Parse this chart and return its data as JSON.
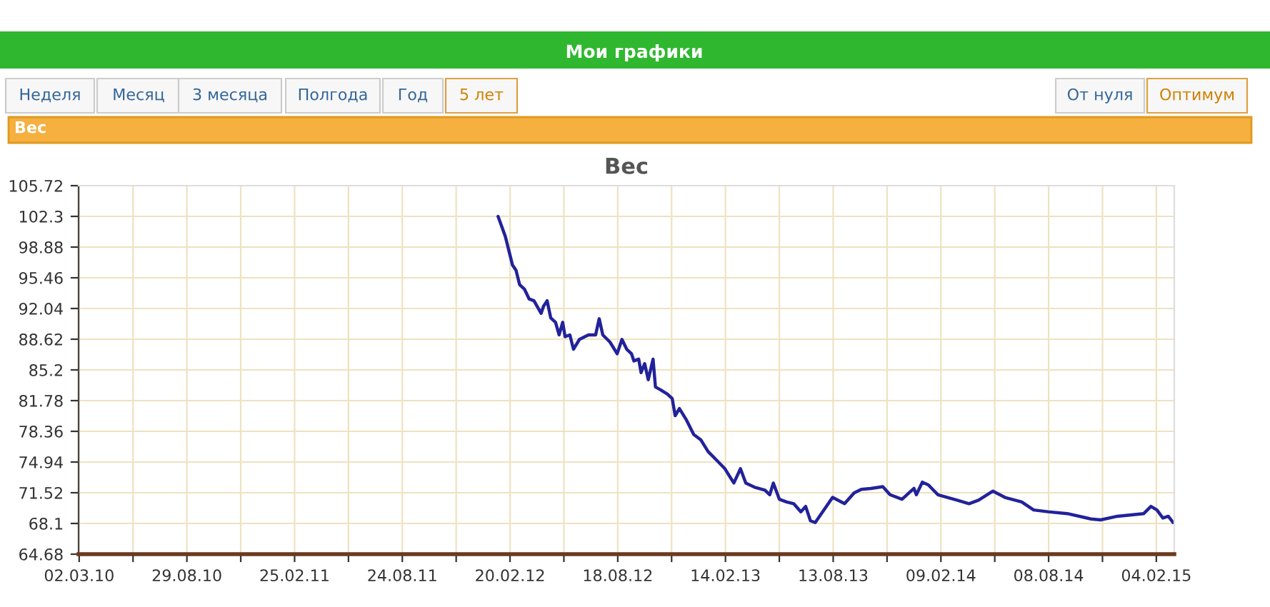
{
  "chart_data": {
    "type": "line",
    "title": "Вес",
    "annotations": [
      "Мои графики",
      "Неделя",
      "Месяц",
      "3 месяца",
      "Полгода",
      "Год",
      "5 лет",
      "От нуля",
      "Оптимум",
      "Вес"
    ],
    "x": [
      "2012-01-31",
      "2012-02-12",
      "2012-02-24",
      "2012-03-01",
      "2012-03-07",
      "2012-03-15",
      "2012-03-23",
      "2012-03-31",
      "2012-04-12",
      "2012-04-16",
      "2012-04-22",
      "2012-04-28",
      "2012-05-06",
      "2012-05-12",
      "2012-05-18",
      "2012-05-22",
      "2012-05-30",
      "2012-06-05",
      "2012-06-15",
      "2012-06-30",
      "2012-07-12",
      "2012-07-18",
      "2012-07-24",
      "2012-08-05",
      "2012-08-17",
      "2012-08-25",
      "2012-09-02",
      "2012-09-10",
      "2012-09-14",
      "2012-09-22",
      "2012-09-26",
      "2012-10-02",
      "2012-10-08",
      "2012-10-16",
      "2012-10-20",
      "2012-10-28",
      "2012-11-09",
      "2012-11-17",
      "2012-11-22",
      "2012-11-29",
      "2012-12-11",
      "2012-12-23",
      "2013-01-04",
      "2013-01-16",
      "2013-01-28",
      "2013-02-13",
      "2013-02-28",
      "2013-03-11",
      "2013-03-20",
      "2013-04-05",
      "2013-04-21",
      "2013-04-29",
      "2013-05-05",
      "2013-05-15",
      "2013-05-27",
      "2013-06-08",
      "2013-06-20",
      "2013-06-28",
      "2013-07-06",
      "2013-07-14",
      "2013-08-12",
      "2013-09-01",
      "2013-09-17",
      "2013-09-29",
      "2013-10-15",
      "2013-11-04",
      "2013-11-16",
      "2013-12-06",
      "2013-12-26",
      "2013-12-30",
      "2014-01-09",
      "2014-01-19",
      "2014-02-04",
      "2014-03-08",
      "2014-03-28",
      "2014-04-13",
      "2014-05-07",
      "2014-05-27",
      "2014-06-24",
      "2014-07-14",
      "2014-08-07",
      "2014-09-08",
      "2014-10-18",
      "2014-11-03",
      "2014-12-01",
      "2015-01-14",
      "2015-01-26",
      "2015-02-05",
      "2015-02-15",
      "2015-02-24",
      "2015-03-04"
    ],
    "series": [
      {
        "color": "#22229a",
        "values": [
          102.3,
          100.1,
          96.9,
          96.3,
          94.7,
          94.2,
          93.1,
          92.9,
          91.5,
          92.3,
          92.9,
          91.0,
          90.5,
          89.1,
          90.5,
          88.9,
          89.1,
          87.5,
          88.6,
          89.1,
          89.1,
          90.9,
          89.1,
          88.3,
          87.0,
          88.6,
          87.5,
          87.0,
          86.2,
          86.4,
          84.9,
          85.9,
          84.1,
          86.4,
          83.3,
          83.0,
          82.5,
          82.0,
          80.1,
          80.9,
          79.6,
          78.0,
          77.4,
          76.1,
          75.3,
          74.2,
          72.6,
          74.2,
          72.6,
          72.1,
          71.8,
          71.3,
          72.6,
          70.8,
          70.5,
          70.3,
          69.4,
          70.0,
          68.4,
          68.2,
          71.0,
          70.3,
          71.5,
          71.9,
          72.0,
          72.2,
          71.3,
          70.8,
          72.0,
          71.3,
          72.7,
          72.4,
          71.3,
          70.7,
          70.3,
          70.7,
          71.7,
          71.0,
          70.5,
          69.6,
          69.4,
          69.2,
          68.6,
          68.5,
          68.9,
          69.2,
          70.0,
          69.6,
          68.7,
          68.9,
          68.2
        ]
      }
    ],
    "xlim": [
      "2010-03-01",
      "2015-03-06"
    ],
    "xticks": [
      {
        "value": "2010-03-02",
        "label": "02.03.10"
      },
      {
        "value": "2010-05-31",
        "label": null
      },
      {
        "value": "2010-08-29",
        "label": "29.08.10"
      },
      {
        "value": "2010-11-27",
        "label": null
      },
      {
        "value": "2011-02-25",
        "label": "25.02.11"
      },
      {
        "value": "2011-05-26",
        "label": null
      },
      {
        "value": "2011-08-24",
        "label": "24.08.11"
      },
      {
        "value": "2011-11-22",
        "label": null
      },
      {
        "value": "2012-02-20",
        "label": "20.02.12"
      },
      {
        "value": "2012-05-20",
        "label": null
      },
      {
        "value": "2012-08-18",
        "label": "18.08.12"
      },
      {
        "value": "2012-11-16",
        "label": null
      },
      {
        "value": "2013-02-14",
        "label": "14.02.13"
      },
      {
        "value": "2013-05-15",
        "label": null
      },
      {
        "value": "2013-08-13",
        "label": "13.08.13"
      },
      {
        "value": "2013-11-11",
        "label": null
      },
      {
        "value": "2014-02-09",
        "label": "09.02.14"
      },
      {
        "value": "2014-05-10",
        "label": null
      },
      {
        "value": "2014-08-08",
        "label": "08.08.14"
      },
      {
        "value": "2014-11-06",
        "label": null
      },
      {
        "value": "2015-02-04",
        "label": "04.02.15"
      }
    ],
    "ylim": [
      64.68,
      105.72
    ],
    "yticks": [
      64.68,
      68.1,
      71.52,
      74.94,
      78.36,
      81.78,
      85.2,
      88.62,
      92.04,
      95.46,
      98.88,
      102.3,
      105.72
    ],
    "grid": true,
    "legend": false,
    "marker": "none",
    "line_style": "solid"
  }
}
